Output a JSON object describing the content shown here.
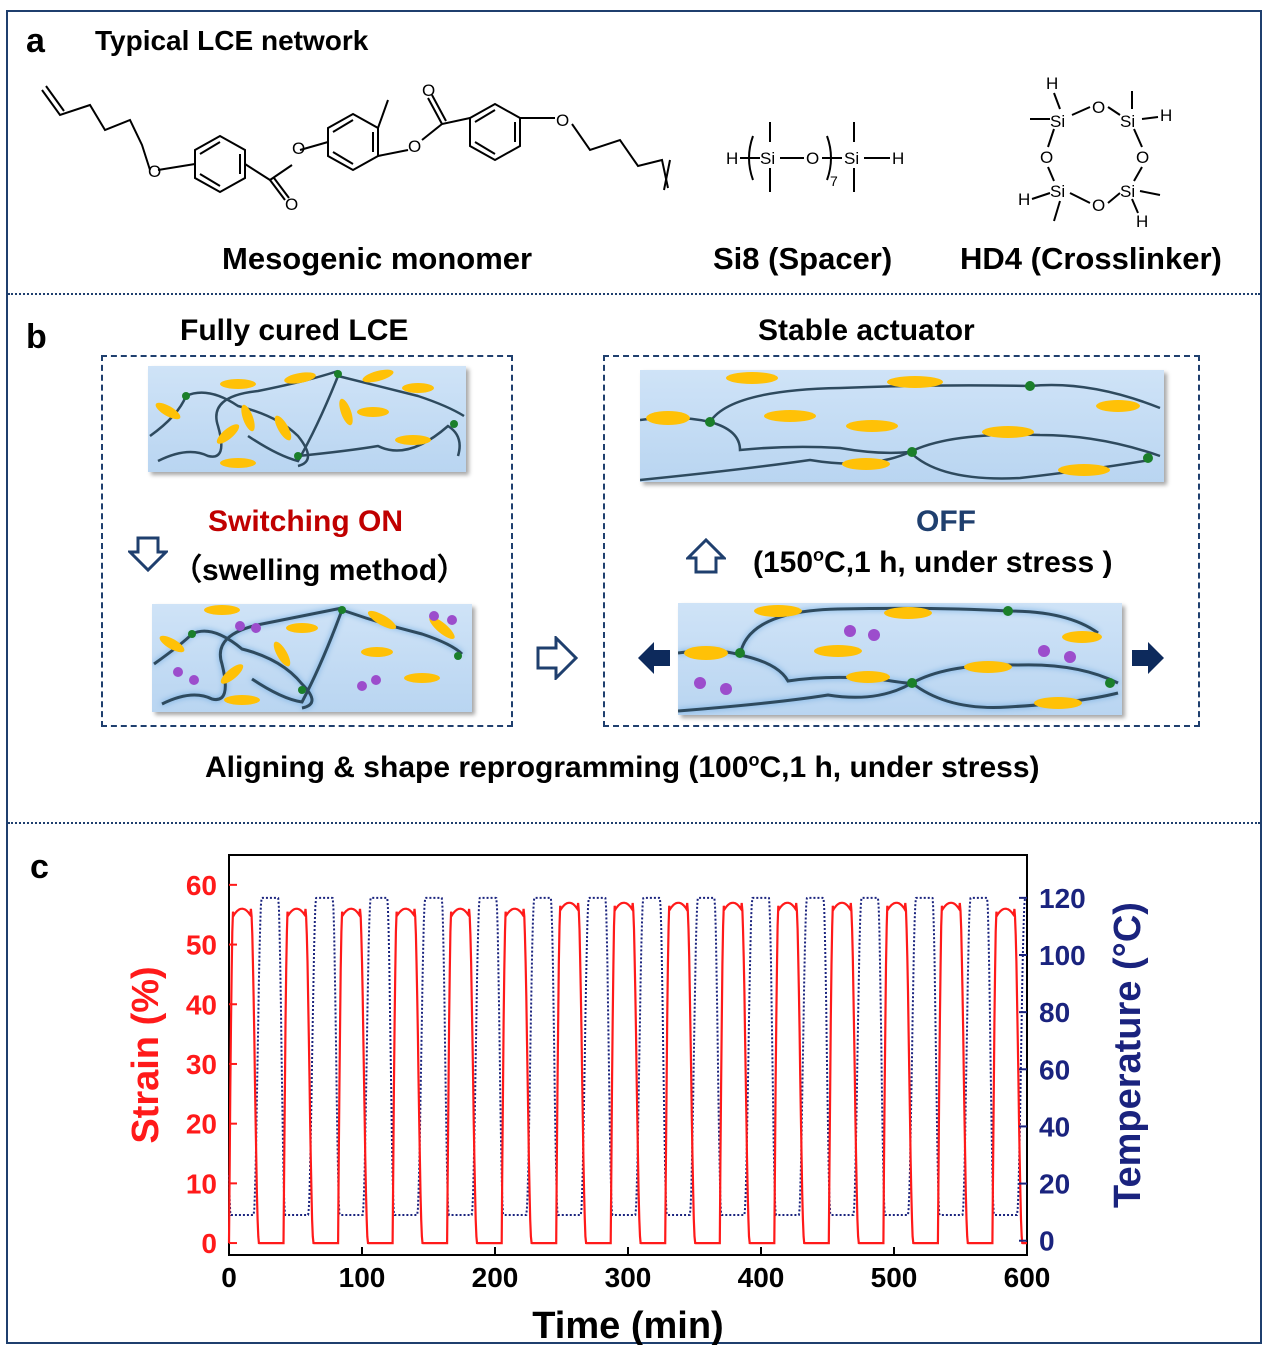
{
  "panel_a": {
    "letter": "a",
    "title": "Typical LCE network",
    "mesogen_label": "Mesogenic monomer",
    "spacer_label": "Si8 (Spacer)",
    "crosslinker_label": "HD4 (Crosslinker)",
    "spacer_subscript": "7"
  },
  "panel_b": {
    "letter": "b",
    "left_title": "Fully cured LCE",
    "right_title": "Stable actuator",
    "switch_on": "Switching  ON",
    "swelling": "（swelling method）",
    "off": "OFF",
    "off_cond_a": "(150",
    "off_cond_sup": "o",
    "off_cond_b": "C,1 h, under stress )",
    "align_a": "Aligning & shape reprogramming (100",
    "align_sup": "o",
    "align_b": "C,1 h, under stress)"
  },
  "panel_c": {
    "letter": "c"
  },
  "chart_data": {
    "type": "line",
    "xlabel": "Time (min)",
    "ylabel_left": "Strain (%)",
    "ylabel_right": "Temperature (°C)",
    "xlim": [
      0,
      600
    ],
    "ylim_left": [
      -2,
      65
    ],
    "ylim_right": [
      -5,
      135
    ],
    "x_ticks": [
      0,
      100,
      200,
      300,
      400,
      500,
      600
    ],
    "y_left_ticks": [
      0,
      10,
      20,
      30,
      40,
      50,
      60
    ],
    "y_right_ticks": [
      0,
      20,
      40,
      60,
      80,
      100,
      120
    ],
    "cycle_period_min": 41,
    "cycles": 15,
    "series": [
      {
        "name": "Strain (%)",
        "axis": "left",
        "color": "#ff1a1a",
        "style": "solid",
        "min": 0,
        "peaks": [
          56,
          56,
          56,
          56,
          56,
          56,
          57,
          57,
          57,
          57,
          57,
          57,
          57,
          57,
          56
        ]
      },
      {
        "name": "Temperature (°C)",
        "axis": "right",
        "color": "#1a237e",
        "style": "dotted",
        "min": 9,
        "max": 120
      }
    ]
  }
}
